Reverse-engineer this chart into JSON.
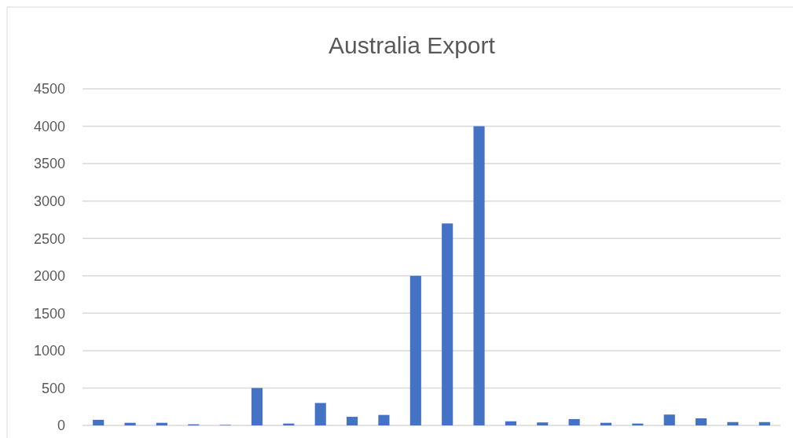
{
  "chart_data": {
    "type": "bar",
    "title": "Australia Export",
    "categories": [
      null,
      null,
      null,
      null,
      null,
      null,
      null,
      null,
      null,
      null,
      null,
      null,
      null,
      null,
      null,
      null,
      null,
      null,
      null,
      null,
      null,
      null
    ],
    "values": [
      75,
      35,
      35,
      15,
      7,
      500,
      25,
      300,
      115,
      140,
      2000,
      2700,
      4000,
      55,
      40,
      85,
      35,
      25,
      145,
      95,
      45,
      45
    ],
    "color": "#4472c4",
    "ylim": [
      0,
      4500
    ],
    "yticks": [
      0,
      500,
      1000,
      1500,
      2000,
      2500,
      3000,
      3500,
      4000,
      4500
    ],
    "grid": "y"
  }
}
